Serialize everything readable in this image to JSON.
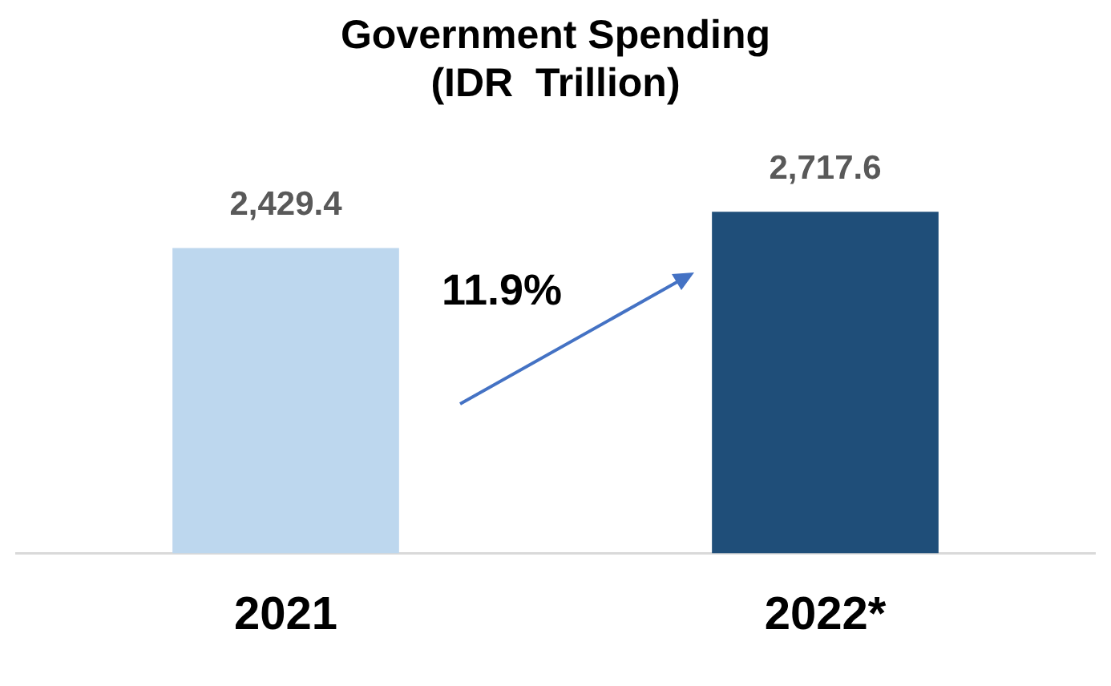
{
  "chart_data": {
    "type": "bar",
    "title": "Government Spending\n(IDR  Trillion)",
    "categories": [
      "2021",
      "2022*"
    ],
    "values": [
      2429.4,
      2717.6
    ],
    "colors": [
      "#bdd7ee",
      "#1f4e79"
    ],
    "value_labels": [
      "2,429.4",
      "2,717.6"
    ],
    "tick_labels": "x",
    "grid": false,
    "legend": false,
    "annotations": [
      "11.9%"
    ]
  }
}
